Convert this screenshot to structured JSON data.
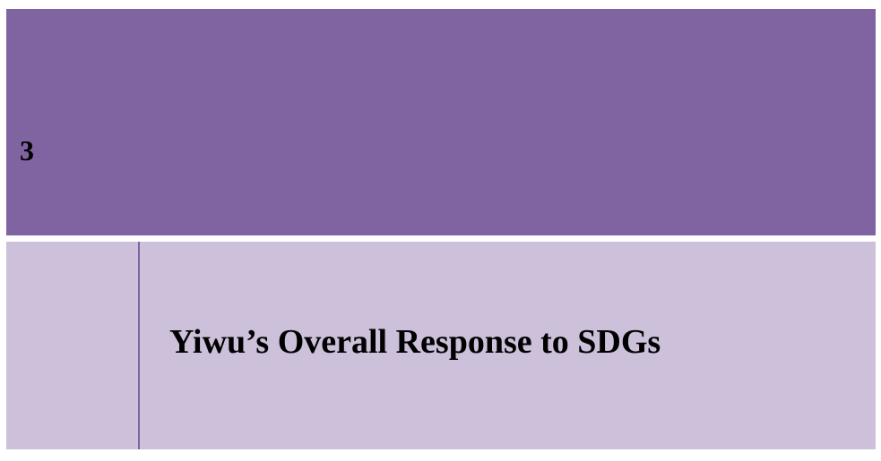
{
  "section": {
    "number": "3",
    "title": "Yiwu’s Overall Response to SDGs"
  }
}
